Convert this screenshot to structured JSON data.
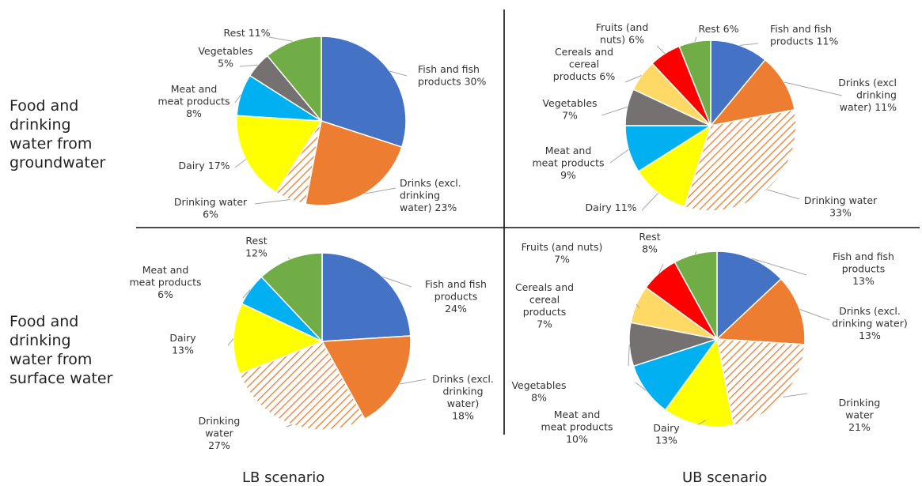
{
  "row_labels": [
    "Food and\ndrinking\nwater from\ngroundwater",
    "Food and\ndrinking\nwater from\nsurface water"
  ],
  "column_labels": [
    "LB scenario",
    "UB scenario"
  ],
  "colors": {
    "fish": "#4472C4",
    "drinks": "#ED7D31",
    "drinking_water": "#ED7D31",
    "dairy": "#FFFF00",
    "meat": "#00B0F0",
    "vegetables": "#767171",
    "cereals": "#FFD966",
    "fruits": "#FF0000",
    "rest": "#70AD47"
  },
  "chart_data": [
    {
      "type": "pie",
      "row": "Food and drinking water from groundwater",
      "column": "LB scenario",
      "slices": [
        {
          "key": "fish",
          "label": "Fish and fish products 30%",
          "value": 30
        },
        {
          "key": "drinks",
          "label": "Drinks (excl. drinking water) 23%",
          "value": 23
        },
        {
          "key": "drinking_water",
          "label": "Drinking water 6%",
          "value": 6,
          "hatched": true
        },
        {
          "key": "dairy",
          "label": "Dairy 17%",
          "value": 17
        },
        {
          "key": "meat",
          "label": "Meat and meat products 8%",
          "value": 8
        },
        {
          "key": "vegetables",
          "label": "Vegetables 5%",
          "value": 5
        },
        {
          "key": "rest",
          "label": "Rest 11%",
          "value": 11
        }
      ]
    },
    {
      "type": "pie",
      "row": "Food and drinking water from groundwater",
      "column": "UB scenario",
      "slices": [
        {
          "key": "fish",
          "label": "Fish and fish products 11%",
          "value": 11
        },
        {
          "key": "drinks",
          "label": "Drinks (excl drinking water) 11%",
          "value": 11
        },
        {
          "key": "drinking_water",
          "label": "Drinking water 33%",
          "value": 33,
          "hatched": true
        },
        {
          "key": "dairy",
          "label": "Dairy 11%",
          "value": 11
        },
        {
          "key": "meat",
          "label": "Meat and meat products 9%",
          "value": 9
        },
        {
          "key": "vegetables",
          "label": "Vegetables 7%",
          "value": 7
        },
        {
          "key": "cereals",
          "label": "Cereals and cereal products 6%",
          "value": 6
        },
        {
          "key": "fruits",
          "label": "Fruits (and nuts) 6%",
          "value": 6
        },
        {
          "key": "rest",
          "label": "Rest 6%",
          "value": 6
        }
      ]
    },
    {
      "type": "pie",
      "row": "Food and drinking water from surface water",
      "column": "LB scenario",
      "slices": [
        {
          "key": "fish",
          "label": "Fish and fish products 24%",
          "value": 24
        },
        {
          "key": "drinks",
          "label": "Drinks (excl. drinking water) 18%",
          "value": 18
        },
        {
          "key": "drinking_water",
          "label": "Drinking water 27%",
          "value": 27,
          "hatched": true
        },
        {
          "key": "dairy",
          "label": "Dairy 13%",
          "value": 13
        },
        {
          "key": "meat",
          "label": "Meat and meat products 6%",
          "value": 6
        },
        {
          "key": "rest",
          "label": "Rest 12%",
          "value": 12
        }
      ]
    },
    {
      "type": "pie",
      "row": "Food and drinking water from surface water",
      "column": "UB scenario",
      "slices": [
        {
          "key": "fish",
          "label": "Fish and fish products 13%",
          "value": 13
        },
        {
          "key": "drinks",
          "label": "Drinks (excl. drinking water) 13%",
          "value": 13
        },
        {
          "key": "drinking_water",
          "label": "Drinking water 21%",
          "value": 21,
          "hatched": true
        },
        {
          "key": "dairy",
          "label": "Dairy 13%",
          "value": 13
        },
        {
          "key": "meat",
          "label": "Meat and meat products 10%",
          "value": 10
        },
        {
          "key": "vegetables",
          "label": "Vegetables 8%",
          "value": 8
        },
        {
          "key": "cereals",
          "label": "Cereals and cereal products 7%",
          "value": 7
        },
        {
          "key": "fruits",
          "label": "Fruits (and nuts) 7%",
          "value": 7
        },
        {
          "key": "rest",
          "label": "Rest 8%",
          "value": 8
        }
      ]
    }
  ]
}
